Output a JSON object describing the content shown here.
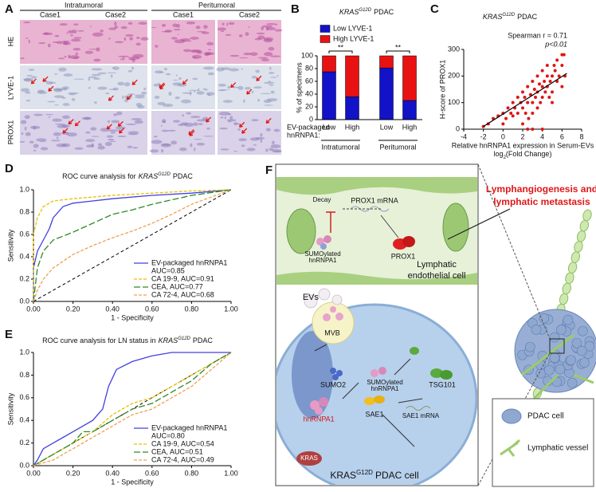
{
  "panel_a": {
    "label": "A",
    "groups": [
      "Intratumoral",
      "Peritumoral"
    ],
    "cases": [
      "Case1",
      "Case2",
      "Case1",
      "Case2"
    ],
    "rows": [
      "HE",
      "LYVE-1",
      "PROX1"
    ]
  },
  "chart_data": [
    {
      "type": "bar",
      "panel_label": "B",
      "title_gene": "KRAS",
      "title_mutation": "G12D",
      "title_rest": "PDAC",
      "y_label": "% of specimens",
      "stacked": true,
      "categories": [
        "Low",
        "High",
        "Low",
        "High"
      ],
      "groups": [
        "Intratumoral",
        "Peritumoral"
      ],
      "x_prefix": [
        "EV-packaged",
        "hnRNPA1:"
      ],
      "series": [
        {
          "name": "Low LYVE-1",
          "color": "#1212c8",
          "values": [
            75,
            36,
            81,
            30
          ]
        },
        {
          "name": "High LYVE-1",
          "color": "#e81212",
          "values": [
            25,
            64,
            19,
            70
          ]
        }
      ],
      "significance": [
        "**",
        "**"
      ],
      "ylim": [
        0,
        100
      ],
      "yticks": [
        0,
        20,
        40,
        60,
        80,
        100
      ]
    },
    {
      "type": "scatter",
      "panel_label": "C",
      "title_gene": "KRAS",
      "title_mutation": "G12D",
      "title_rest": "PDAC",
      "annotation": [
        "Spearman  r = 0.71",
        "p<0.01"
      ],
      "y_label": "H-score of PROX1",
      "x_label": "Relative hnRNPA1 expression in Serum-EVs",
      "x_label_unit": [
        "log",
        "2",
        "(Fold Change)"
      ],
      "color": "#e01515",
      "x": [
        -1.5,
        -1,
        -0.5,
        0,
        0,
        0.3,
        0.5,
        0.8,
        1,
        1,
        1.2,
        1.5,
        1.5,
        1.8,
        2,
        2,
        2,
        2.2,
        2.3,
        2.5,
        2.5,
        2.6,
        2.8,
        3,
        3,
        3,
        3.2,
        3.3,
        3.5,
        3.5,
        3.5,
        3.7,
        3.8,
        4,
        4,
        4,
        4,
        4.2,
        4.3,
        4.5,
        4.5,
        4.5,
        4.7,
        4.8,
        5,
        5,
        5,
        5.2,
        5.3,
        5.5,
        5.5,
        5.7,
        6,
        6,
        6,
        6.2,
        6.3,
        2.5,
        3,
        -2
      ],
      "values": [
        20,
        40,
        50,
        60,
        20,
        40,
        80,
        60,
        100,
        50,
        80,
        120,
        60,
        100,
        140,
        80,
        20,
        120,
        60,
        160,
        100,
        40,
        130,
        180,
        100,
        60,
        150,
        120,
        200,
        140,
        80,
        170,
        100,
        220,
        160,
        120,
        0,
        180,
        140,
        240,
        200,
        160,
        120,
        180,
        200,
        140,
        100,
        240,
        220,
        260,
        180,
        200,
        280,
        240,
        160,
        280,
        200,
        0,
        0,
        10
      ],
      "fit": {
        "x": [
          -2,
          6.5
        ],
        "values": [
          10,
          210
        ],
        "color": "#000000"
      },
      "xlim": [
        -4,
        8
      ],
      "xticks": [
        -4,
        -2,
        0,
        2,
        4,
        6,
        8
      ],
      "ylim": [
        0,
        300
      ],
      "yticks": [
        0,
        100,
        200,
        300
      ]
    },
    {
      "type": "line",
      "panel_label": "D",
      "title": "ROC curve analysis for",
      "title_gene": "KRAS",
      "title_mutation": "G12D",
      "title_rest": "PDAC",
      "x_label": "1 - Specificity",
      "y_label": "Sensitivity",
      "diagonal": true,
      "legend": "lower right",
      "series": [
        {
          "name": "EV-packaged hnRNPA1",
          "legend_line2": "AUC=0.85",
          "color": "#4040e0",
          "line_style": "solid",
          "x": [
            0,
            0,
            0.02,
            0.05,
            0.08,
            0.1,
            0.15,
            0.2,
            0.3,
            0.4,
            0.6,
            0.8,
            1
          ],
          "values": [
            0,
            0.3,
            0.45,
            0.55,
            0.65,
            0.75,
            0.85,
            0.88,
            0.9,
            0.92,
            0.95,
            0.97,
            1
          ]
        },
        {
          "name": "CA 19-9, AUC=0.91",
          "color": "#e8c000",
          "line_style": "dashed",
          "x": [
            0,
            0,
            0.02,
            0.05,
            0.1,
            0.2,
            0.4,
            0.6,
            0.8,
            1
          ],
          "values": [
            0,
            0.6,
            0.75,
            0.85,
            0.9,
            0.92,
            0.95,
            0.97,
            0.99,
            1
          ]
        },
        {
          "name": "CEA, AUC=0.77",
          "color": "#2a8a2a",
          "line_style": "long-dashed",
          "x": [
            0,
            0.02,
            0.05,
            0.1,
            0.2,
            0.3,
            0.4,
            0.5,
            0.6,
            0.8,
            1
          ],
          "values": [
            0,
            0.3,
            0.45,
            0.55,
            0.62,
            0.7,
            0.78,
            0.82,
            0.87,
            0.95,
            1
          ]
        },
        {
          "name": "CA 72-4, AUC=0.68",
          "color": "#f0a050",
          "line_style": "dashed",
          "x": [
            0,
            0.02,
            0.05,
            0.1,
            0.2,
            0.3,
            0.4,
            0.5,
            0.6,
            0.7,
            0.8,
            1
          ],
          "values": [
            0,
            0.1,
            0.2,
            0.3,
            0.42,
            0.5,
            0.57,
            0.63,
            0.7,
            0.78,
            0.87,
            1
          ]
        }
      ],
      "xlim": [
        0,
        1
      ],
      "xticks": [
        {
          "value": 0,
          "label": "0.00"
        },
        {
          "value": 0.2,
          "label": "0.20"
        },
        {
          "value": 0.4,
          "label": "0.40"
        },
        {
          "value": 0.6,
          "label": "0.60"
        },
        {
          "value": 0.8,
          "label": "0.80"
        },
        {
          "value": 1,
          "label": "1.00"
        }
      ],
      "ylim": [
        0,
        1
      ],
      "yticks": [
        {
          "value": 0,
          "label": "0.0"
        },
        0.2,
        0.4,
        0.6,
        0.8,
        {
          "value": 1,
          "label": "1.0"
        }
      ]
    },
    {
      "type": "line",
      "panel_label": "E",
      "title": "ROC curve analysis for LN status in",
      "title_gene": "KRAS",
      "title_mutation": "G12D",
      "title_rest": "PDAC",
      "x_label": "1 - Specificity",
      "y_label": "Sensitivity",
      "diagonal": true,
      "legend": "lower right",
      "series": [
        {
          "name": "EV-packaged hnRNPA1",
          "legend_line2": "AUC=0.80",
          "color": "#4040e0",
          "line_style": "solid",
          "x": [
            0,
            0.02,
            0.05,
            0.1,
            0.15,
            0.2,
            0.3,
            0.35,
            0.38,
            0.42,
            0.5,
            0.6,
            0.7,
            0.8,
            1
          ],
          "values": [
            0,
            0.05,
            0.15,
            0.2,
            0.25,
            0.3,
            0.4,
            0.5,
            0.7,
            0.85,
            0.92,
            0.97,
            1,
            1,
            1
          ]
        },
        {
          "name": "CA 19-9, AUC=0.54",
          "color": "#e8c000",
          "line_style": "dashed",
          "x": [
            0,
            0.1,
            0.2,
            0.3,
            0.4,
            0.5,
            0.6,
            0.7,
            0.8,
            0.9,
            1
          ],
          "values": [
            0,
            0.1,
            0.2,
            0.3,
            0.45,
            0.55,
            0.6,
            0.7,
            0.8,
            0.9,
            1
          ]
        },
        {
          "name": "CEA, AUC=0.51",
          "color": "#2a8a2a",
          "line_style": "long-dashed",
          "x": [
            0,
            0.1,
            0.2,
            0.25,
            0.3,
            0.4,
            0.5,
            0.6,
            0.7,
            0.8,
            0.9,
            1
          ],
          "values": [
            0,
            0.1,
            0.2,
            0.3,
            0.3,
            0.4,
            0.5,
            0.55,
            0.65,
            0.75,
            0.9,
            1
          ]
        },
        {
          "name": "CA 72-4, AUC=0.49",
          "color": "#f0a050",
          "line_style": "dashed",
          "x": [
            0,
            0.1,
            0.2,
            0.3,
            0.4,
            0.5,
            0.6,
            0.7,
            0.8,
            0.9,
            1
          ],
          "values": [
            0,
            0.05,
            0.15,
            0.25,
            0.35,
            0.45,
            0.5,
            0.6,
            0.7,
            0.85,
            1
          ]
        }
      ],
      "xlim": [
        0,
        1
      ],
      "xticks": [
        {
          "value": 0,
          "label": "0.00"
        },
        {
          "value": 0.2,
          "label": "0.20"
        },
        {
          "value": 0.4,
          "label": "0.40"
        },
        {
          "value": 0.6,
          "label": "0.60"
        },
        {
          "value": 0.8,
          "label": "0.80"
        },
        {
          "value": 1,
          "label": "1.00"
        }
      ],
      "ylim": [
        0,
        1
      ],
      "yticks": [
        {
          "value": 0,
          "label": "0.0"
        },
        0.2,
        0.4,
        0.6,
        0.8,
        {
          "value": 1,
          "label": "1.0"
        }
      ]
    }
  ],
  "panel_f": {
    "label": "F",
    "outcome": [
      "Lymphangiogenesis and",
      "lymphatic metastasis"
    ],
    "decay": "Decay",
    "prox1_mrna": "PROX1 mRNA",
    "sumo_hnrnpa1_top": [
      "SUMOylated",
      "hnRNPA1"
    ],
    "prox1": "PROX1",
    "lec": [
      "Lymphatic",
      "endothelial cell"
    ],
    "evs": "EVs",
    "mvb": "MVB",
    "sumo2": "SUMO2",
    "sumo_hnrnpa1": [
      "SUMOylated",
      "hnRNPA1"
    ],
    "tsg101": "TSG101",
    "hnrnpa1": "hnRNPA1",
    "sae1": "SAE1",
    "sae1_mrna": "SAE1 mRNA",
    "kras": "KRAS",
    "cell_gene": "KRAS",
    "cell_mutation": "G12D",
    "cell_rest": "PDAC cell",
    "legend": [
      "PDAC cell",
      "Lymphatic vessel"
    ]
  }
}
